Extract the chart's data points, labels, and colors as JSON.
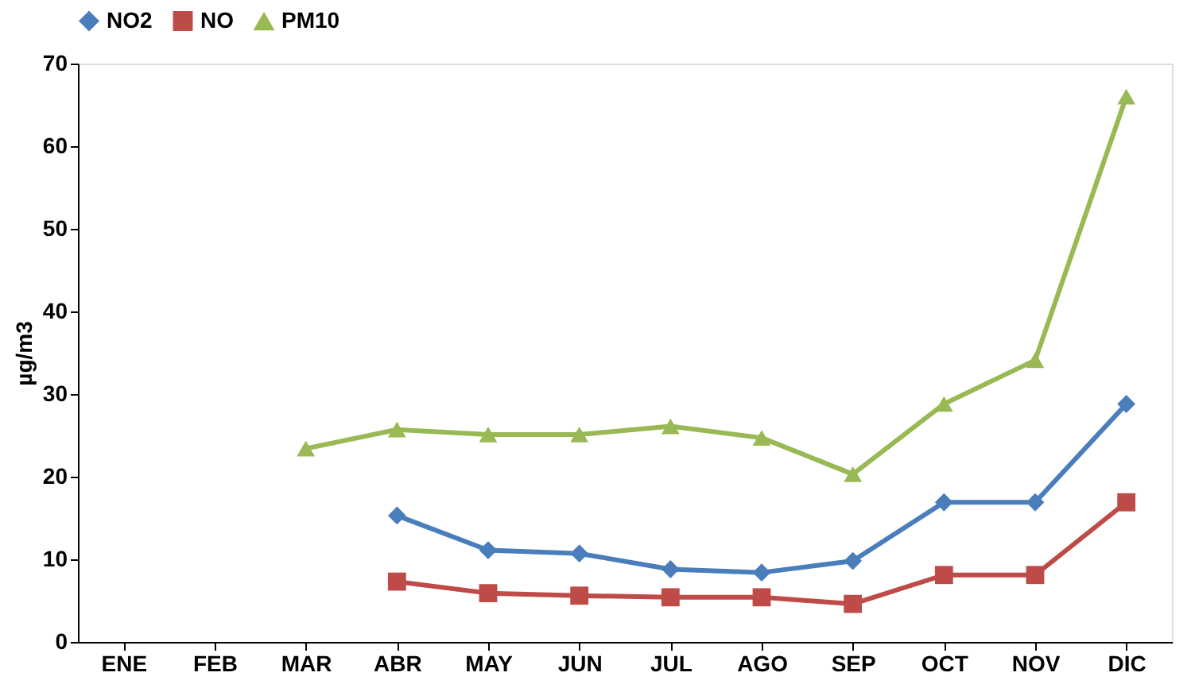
{
  "chart_data": {
    "type": "line",
    "ylabel": "µg/m3",
    "categories": [
      "ENE",
      "FEB",
      "MAR",
      "ABR",
      "MAY",
      "JUN",
      "JUL",
      "AGO",
      "SEP",
      "OCT",
      "NOV",
      "DIC"
    ],
    "series": [
      {
        "name": "NO2",
        "color": "#4a7ebb",
        "marker": "diamond",
        "values": [
          null,
          null,
          null,
          15.3,
          11.1,
          10.7,
          8.8,
          8.4,
          9.8,
          16.9,
          16.9,
          28.8
        ]
      },
      {
        "name": "NO",
        "color": "#be4b48",
        "marker": "square",
        "values": [
          null,
          null,
          null,
          7.3,
          5.9,
          5.6,
          5.4,
          5.4,
          4.6,
          8.1,
          8.1,
          16.9
        ]
      },
      {
        "name": "PM10",
        "color": "#98b954",
        "marker": "triangle",
        "values": [
          null,
          null,
          23.4,
          25.7,
          25.1,
          25.1,
          26.1,
          24.7,
          20.3,
          28.8,
          34.1,
          66.0
        ]
      }
    ],
    "ylim": [
      0,
      70
    ],
    "yticks": [
      0,
      10,
      20,
      30,
      40,
      50,
      60,
      70
    ],
    "grid": false,
    "legend": "top",
    "line_style": "solid"
  }
}
